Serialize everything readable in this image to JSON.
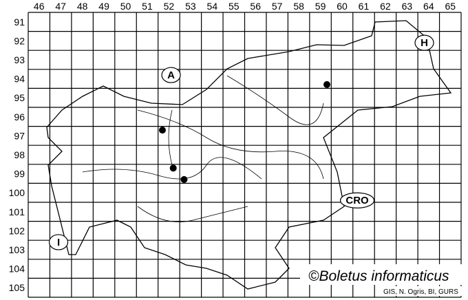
{
  "map": {
    "columns": [
      "46",
      "47",
      "48",
      "49",
      "50",
      "51",
      "52",
      "53",
      "54",
      "55",
      "56",
      "57",
      "58",
      "59",
      "60",
      "61",
      "62",
      "63",
      "64",
      "65"
    ],
    "rows": [
      "91",
      "92",
      "93",
      "94",
      "95",
      "96",
      "97",
      "98",
      "99",
      "100",
      "101",
      "102",
      "103",
      "104",
      "105"
    ],
    "countries": [
      {
        "label": "A",
        "col": 52.6,
        "row": 94.3
      },
      {
        "label": "H",
        "col": 64.3,
        "row": 92.6
      },
      {
        "label": "CRO",
        "col": 61.2,
        "row": 100.9
      },
      {
        "label": "I",
        "col": 47.4,
        "row": 103.1
      }
    ],
    "records": [
      {
        "col": 52.2,
        "row": 97.2
      },
      {
        "col": 52.7,
        "row": 99.2
      },
      {
        "col": 53.2,
        "row": 99.8
      },
      {
        "col": 59.8,
        "row": 94.8
      }
    ],
    "colors": {
      "lines": "#000000",
      "background": "#ffffff",
      "dots": "#000000"
    }
  },
  "watermark": "©Boletus informaticus",
  "credits": "GIS, N. Ogris, BI, GURS"
}
